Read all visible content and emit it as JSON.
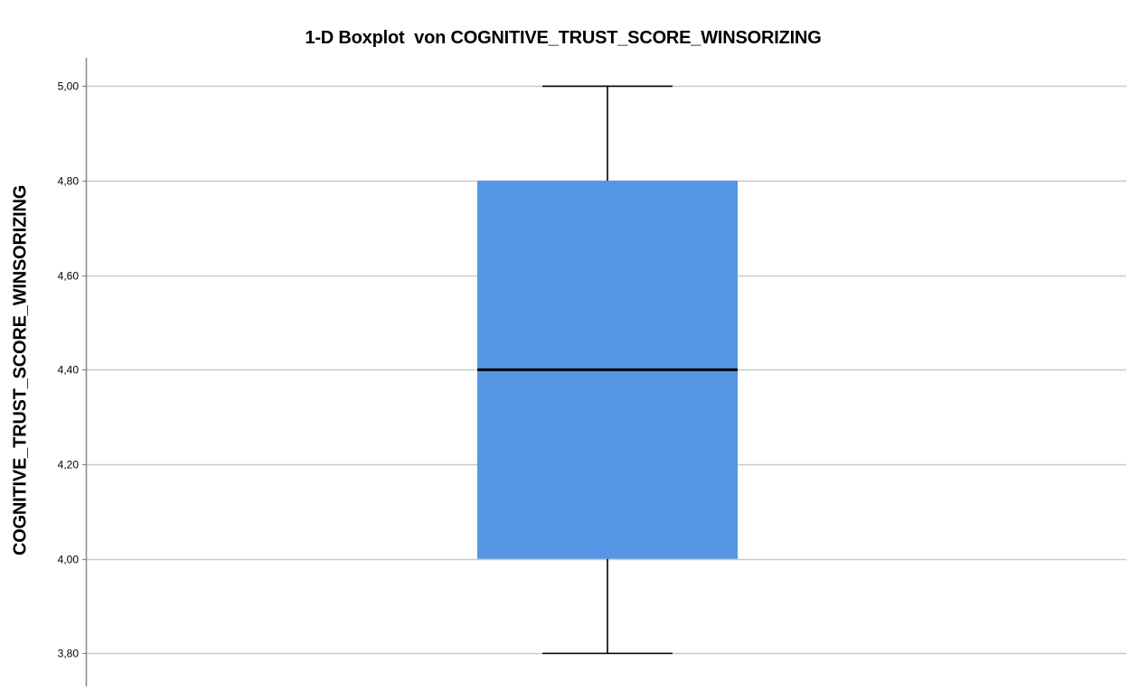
{
  "chart_data": {
    "type": "boxplot",
    "title": "1-D Boxplot  von COGNITIVE_TRUST_SCORE_WINSORIZING",
    "ylabel": "COGNITIVE_TRUST_SCORE_WINSORIZING",
    "xlabel": "",
    "ylim": [
      3.73,
      5.06
    ],
    "yticks": [
      {
        "value": 3.8,
        "label": "3,80"
      },
      {
        "value": 4.0,
        "label": "4,00"
      },
      {
        "value": 4.2,
        "label": "4,20"
      },
      {
        "value": 4.4,
        "label": "4,40"
      },
      {
        "value": 4.6,
        "label": "4,60"
      },
      {
        "value": 4.8,
        "label": "4,80"
      },
      {
        "value": 5.0,
        "label": "5,00"
      }
    ],
    "grid": true,
    "box": {
      "whisker_low": 3.8,
      "q1": 4.0,
      "median": 4.4,
      "q3": 4.8,
      "whisker_high": 5.0
    },
    "colors": {
      "box_fill": "#5596e4",
      "gridline": "#c9c9c9",
      "axis": "#888888",
      "median": "#000000",
      "whisker": "#000000"
    }
  }
}
